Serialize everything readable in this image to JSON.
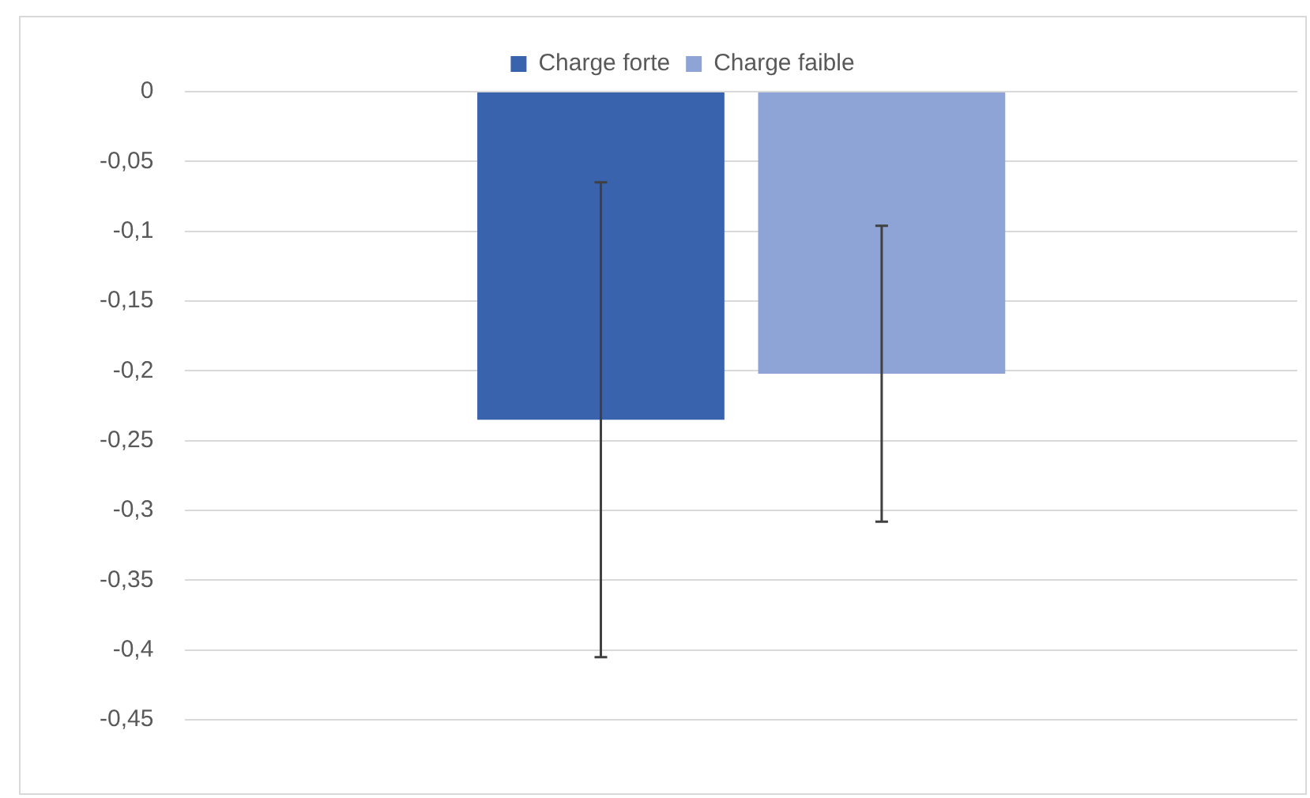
{
  "chart_data": {
    "type": "bar",
    "categories": [
      null
    ],
    "series": [
      {
        "name": "Charge forte",
        "color": "#3a63ad",
        "values": [
          -0.235
        ],
        "errors": [
          0.17
        ]
      },
      {
        "name": "Charge faible",
        "color": "#8fa4d6",
        "values": [
          -0.202
        ],
        "errors": [
          0.106
        ]
      }
    ],
    "ylim": [
      -0.45,
      0
    ],
    "yticks": [
      {
        "value": 0,
        "label": "0"
      },
      {
        "value": -0.05,
        "label": "-0,05"
      },
      {
        "value": -0.1,
        "label": "-0,1"
      },
      {
        "value": -0.15,
        "label": "-0,15"
      },
      {
        "value": -0.2,
        "label": "-0,2"
      },
      {
        "value": -0.25,
        "label": "-0,25"
      },
      {
        "value": -0.3,
        "label": "-0,3"
      },
      {
        "value": -0.35,
        "label": "-0,35"
      },
      {
        "value": -0.4,
        "label": "-0,4"
      },
      {
        "value": -0.45,
        "label": "-0,45"
      }
    ],
    "grid": "y",
    "legend": "top"
  }
}
